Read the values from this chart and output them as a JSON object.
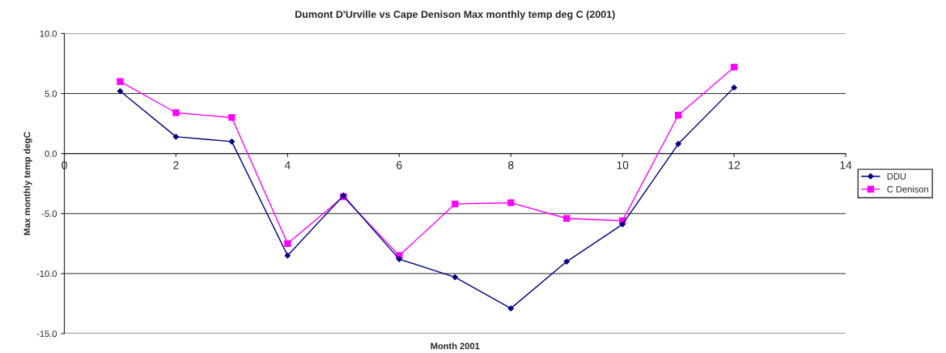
{
  "chart_data": {
    "type": "line",
    "title": "Dumont D'Urville vs Cape Denison Max monthly temp deg C (2001)",
    "xlabel": "Month 2001",
    "ylabel": "Max monthly temp degC",
    "x": [
      1,
      2,
      3,
      4,
      5,
      6,
      7,
      8,
      9,
      10,
      11,
      12
    ],
    "series": [
      {
        "name": "DDU",
        "color": "#000080",
        "marker": "diamond",
        "values": [
          5.2,
          1.4,
          1.0,
          -8.5,
          -3.5,
          -8.8,
          -10.3,
          -12.9,
          -9.0,
          -5.9,
          0.8,
          5.5
        ]
      },
      {
        "name": "C Denison",
        "color": "#ff00ff",
        "marker": "square",
        "values": [
          6.0,
          3.4,
          3.0,
          -7.5,
          -3.6,
          -8.5,
          -4.2,
          -4.1,
          -5.4,
          -5.6,
          3.2,
          7.2
        ]
      }
    ],
    "xlim": [
      0,
      14
    ],
    "xticks": [
      0,
      2,
      4,
      6,
      8,
      10,
      12,
      14
    ],
    "ylim": [
      -15,
      10
    ],
    "yticks": [
      {
        "value": -15,
        "label": "-15.0"
      },
      {
        "value": -10,
        "label": "-10.0"
      },
      {
        "value": -5,
        "label": "-5.0"
      },
      {
        "value": 0,
        "label": "0.0"
      },
      {
        "value": 5,
        "label": "5.0"
      },
      {
        "value": 10,
        "label": "10.0"
      }
    ],
    "grid": "y",
    "legend": "right"
  }
}
